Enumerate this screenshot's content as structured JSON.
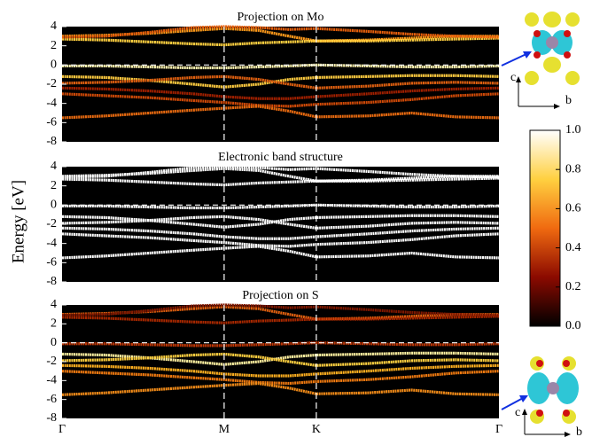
{
  "chart_data": [
    {
      "type": "line",
      "title": "Projection on Mo",
      "ylim": [
        -8,
        4
      ],
      "yticks": [
        -8,
        -6,
        -4,
        -2,
        0,
        2,
        4
      ],
      "xlim": [
        0,
        1
      ],
      "x": [
        0,
        0.1,
        0.2,
        0.3,
        0.371,
        0.45,
        0.52,
        0.582,
        0.7,
        0.8,
        0.9,
        1
      ],
      "series": [
        {
          "color": "#ff9a1a",
          "values": [
            3,
            3.1,
            3.3,
            3.6,
            3.8,
            3.6,
            3.0,
            2.5,
            2.6,
            2.8,
            3,
            3
          ]
        },
        {
          "color": "#ffd040",
          "values": [
            2.7,
            2.6,
            2.4,
            2.2,
            2.1,
            2.3,
            2.4,
            2.5,
            2.5,
            2.6,
            2.7,
            2.8
          ]
        },
        {
          "color": "#e8600c",
          "values": [
            2.9,
            3.0,
            3.4,
            3.9,
            4.0,
            3.9,
            3.7,
            3.8,
            3.5,
            3.2,
            3.0,
            2.9
          ]
        },
        {
          "color": "#fff4b0",
          "values": [
            -0.1,
            -0.1,
            -0.2,
            -0.3,
            -0.3,
            -0.2,
            -0.1,
            0,
            -0.1,
            -0.2,
            -0.2,
            -0.1
          ]
        },
        {
          "color": "#ffcc40",
          "values": [
            -1.2,
            -1.3,
            -1.6,
            -2.0,
            -2.3,
            -2.0,
            -1.5,
            -1.3,
            -1.2,
            -1.1,
            -1.1,
            -1.2
          ]
        },
        {
          "color": "#e06010",
          "values": [
            -1.9,
            -1.8,
            -1.6,
            -1.3,
            -1.2,
            -1.5,
            -2.0,
            -2.4,
            -2.2,
            -1.9,
            -1.8,
            -1.9
          ]
        },
        {
          "color": "#a02000",
          "values": [
            -2.4,
            -2.5,
            -2.7,
            -3.0,
            -3.3,
            -3.5,
            -3.5,
            -3.3,
            -3.0,
            -2.7,
            -2.5,
            -2.4
          ]
        },
        {
          "color": "#d04a08",
          "values": [
            -3.0,
            -3.2,
            -3.4,
            -3.7,
            -3.9,
            -4.2,
            -4.3,
            -4.1,
            -3.9,
            -3.6,
            -3.2,
            -3.0
          ]
        },
        {
          "color": "#e86a10",
          "values": [
            -5.5,
            -5.3,
            -5.0,
            -4.7,
            -4.5,
            -4.3,
            -4.8,
            -5.4,
            -5.3,
            -5.0,
            -5.4,
            -5.5
          ]
        }
      ]
    },
    {
      "type": "line",
      "title": "Electronic band structure",
      "ylabel": "Energy [eV]",
      "ylim": [
        -8,
        4
      ],
      "yticks": [
        -8,
        -6,
        -4,
        -2,
        0,
        2,
        4
      ],
      "xlim": [
        0,
        1
      ],
      "x": [
        0,
        0.1,
        0.2,
        0.3,
        0.371,
        0.45,
        0.52,
        0.582,
        0.7,
        0.8,
        0.9,
        1
      ],
      "series": [
        {
          "color": "#ffffff",
          "values": [
            3,
            3.1,
            3.3,
            3.6,
            3.8,
            3.6,
            3.0,
            2.5,
            2.6,
            2.8,
            3,
            3
          ]
        },
        {
          "color": "#ffffff",
          "values": [
            2.7,
            2.6,
            2.4,
            2.2,
            2.1,
            2.3,
            2.4,
            2.5,
            2.5,
            2.6,
            2.7,
            2.8
          ]
        },
        {
          "color": "#ffffff",
          "values": [
            2.9,
            3.0,
            3.4,
            3.9,
            4.0,
            3.9,
            3.7,
            3.8,
            3.5,
            3.2,
            3.0,
            2.9
          ]
        },
        {
          "color": "#ffffff",
          "values": [
            -0.1,
            -0.1,
            -0.2,
            -0.3,
            -0.3,
            -0.2,
            -0.1,
            0,
            -0.1,
            -0.2,
            -0.2,
            -0.1
          ]
        },
        {
          "color": "#ffffff",
          "values": [
            -1.2,
            -1.3,
            -1.6,
            -2.0,
            -2.3,
            -2.0,
            -1.5,
            -1.3,
            -1.2,
            -1.1,
            -1.1,
            -1.2
          ]
        },
        {
          "color": "#ffffff",
          "values": [
            -1.9,
            -1.8,
            -1.6,
            -1.3,
            -1.2,
            -1.5,
            -2.0,
            -2.4,
            -2.2,
            -1.9,
            -1.8,
            -1.9
          ]
        },
        {
          "color": "#ffffff",
          "values": [
            -2.4,
            -2.5,
            -2.7,
            -3.0,
            -3.3,
            -3.5,
            -3.5,
            -3.3,
            -3.0,
            -2.7,
            -2.5,
            -2.4
          ]
        },
        {
          "color": "#ffffff",
          "values": [
            -3.0,
            -3.2,
            -3.4,
            -3.7,
            -3.9,
            -4.2,
            -4.3,
            -4.1,
            -3.9,
            -3.6,
            -3.2,
            -3.0
          ]
        },
        {
          "color": "#ffffff",
          "values": [
            -5.5,
            -5.3,
            -5.0,
            -4.7,
            -4.5,
            -4.3,
            -4.8,
            -5.4,
            -5.3,
            -5.0,
            -5.4,
            -5.5
          ]
        }
      ]
    },
    {
      "type": "line",
      "title": "Projection on S",
      "ylim": [
        -8,
        4
      ],
      "yticks": [
        -8,
        -6,
        -4,
        -2,
        0,
        2,
        4
      ],
      "xlim": [
        0,
        1
      ],
      "xticks": [
        {
          "value": 0,
          "label": "Γ"
        },
        {
          "value": 0.371,
          "label": "M"
        },
        {
          "value": 0.582,
          "label": "K"
        },
        {
          "value": 1,
          "label": "Γ"
        }
      ],
      "x": [
        0,
        0.1,
        0.2,
        0.3,
        0.371,
        0.45,
        0.52,
        0.582,
        0.7,
        0.8,
        0.9,
        1
      ],
      "series": [
        {
          "color": "#e06010",
          "values": [
            3,
            3.1,
            3.3,
            3.6,
            3.8,
            3.6,
            3.0,
            2.5,
            2.6,
            2.8,
            3,
            3
          ]
        },
        {
          "color": "#a82800",
          "values": [
            2.7,
            2.6,
            2.4,
            2.2,
            2.1,
            2.3,
            2.4,
            2.5,
            2.5,
            2.6,
            2.7,
            2.8
          ]
        },
        {
          "color": "#801800",
          "values": [
            2.9,
            3.0,
            3.4,
            3.9,
            4.0,
            3.9,
            3.7,
            3.8,
            3.5,
            3.2,
            3.0,
            2.9
          ]
        },
        {
          "color": "#c03808",
          "values": [
            -0.1,
            -0.1,
            -0.2,
            -0.3,
            -0.3,
            -0.2,
            -0.1,
            0,
            -0.1,
            -0.2,
            -0.2,
            -0.1
          ]
        },
        {
          "color": "#fff0a0",
          "values": [
            -1.2,
            -1.3,
            -1.6,
            -2.0,
            -2.3,
            -2.0,
            -1.5,
            -1.3,
            -1.2,
            -1.1,
            -1.1,
            -1.2
          ]
        },
        {
          "color": "#ffd040",
          "values": [
            -1.9,
            -1.8,
            -1.6,
            -1.3,
            -1.2,
            -1.5,
            -2.0,
            -2.4,
            -2.2,
            -1.9,
            -1.8,
            -1.9
          ]
        },
        {
          "color": "#ffb020",
          "values": [
            -2.4,
            -2.5,
            -2.7,
            -3.0,
            -3.3,
            -3.5,
            -3.5,
            -3.3,
            -3.0,
            -2.7,
            -2.5,
            -2.4
          ]
        },
        {
          "color": "#f07a10",
          "values": [
            -3.0,
            -3.2,
            -3.4,
            -3.7,
            -3.9,
            -4.2,
            -4.3,
            -4.1,
            -3.9,
            -3.6,
            -3.2,
            -3.0
          ]
        },
        {
          "color": "#f08a18",
          "values": [
            -5.5,
            -5.3,
            -5.0,
            -4.7,
            -4.5,
            -4.3,
            -4.8,
            -5.4,
            -5.3,
            -5.0,
            -5.4,
            -5.5
          ]
        }
      ]
    },
    {
      "type": "colorbar",
      "ylim": [
        0,
        1
      ],
      "yticks": [
        {
          "value": 0,
          "label": "0.0"
        },
        {
          "value": 0.2,
          "label": "0.2"
        },
        {
          "value": 0.4,
          "label": "0.4"
        },
        {
          "value": 0.6,
          "label": "0.6"
        },
        {
          "value": 0.8,
          "label": "0.8"
        },
        {
          "value": 1,
          "label": "1.0"
        }
      ],
      "colors": [
        "#000000",
        "#8b0a00",
        "#f06a10",
        "#ffd040",
        "#ffffff"
      ]
    }
  ],
  "insets": [
    {
      "axis_labels": [
        "c",
        "b"
      ]
    },
    {
      "axis_labels": [
        "c",
        "b"
      ]
    }
  ]
}
